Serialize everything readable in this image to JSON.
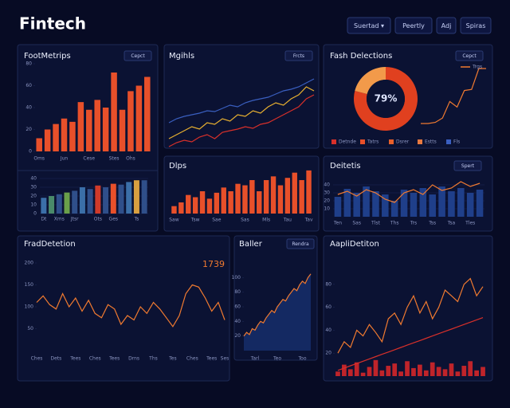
{
  "header": {
    "title": "Fintech",
    "buttons": [
      "Suertad ▾",
      "Peertly",
      "Adj",
      "Spiras"
    ]
  },
  "chart_data": [
    {
      "type": "bar",
      "title": "FootMetrips",
      "button": "Cepct",
      "categories": [
        "Oms",
        null,
        null,
        "Jun",
        null,
        null,
        "Cese",
        null,
        null,
        "Stes",
        null,
        "Ohs",
        null,
        null
      ],
      "values": [
        12,
        20,
        25,
        30,
        27,
        45,
        38,
        47,
        40,
        72,
        38,
        55,
        60,
        68
      ],
      "color": "#e8502a",
      "ylim": [
        0,
        80
      ],
      "yticks": [
        0,
        20,
        40,
        60,
        80
      ]
    },
    {
      "type": "bar",
      "categories": [
        "Dt",
        null,
        "Xms",
        null,
        "Jtsr",
        null,
        null,
        "Ots",
        null,
        "Ges",
        null,
        null,
        "Ts",
        null
      ],
      "values": [
        18,
        20,
        22,
        24,
        26,
        30,
        28,
        32,
        30,
        34,
        33,
        36,
        38,
        38
      ],
      "colors": [
        "#3b6fa8",
        "#4a8a6a",
        "#2f4f8a",
        "#6aa04a",
        "#2f4f8a",
        "#3b6fa8",
        "#2f4f8a",
        "#d03a2a",
        "#2f4f8a",
        "#e8502a",
        "#2f4f8a",
        "#3b6fa8",
        "#d8a040",
        "#2f4f8a"
      ],
      "ylim": [
        0,
        40
      ],
      "yticks": [
        0,
        10,
        20,
        30,
        40
      ],
      "grid": true
    },
    {
      "type": "line",
      "title": "Mgihls",
      "button": "Frcts",
      "series": [
        {
          "color": "#3a5fc0",
          "values": [
            30,
            35,
            38,
            40,
            42,
            45,
            44,
            48,
            52,
            50,
            55,
            58,
            60,
            62,
            66,
            70,
            72,
            75,
            80,
            85
          ]
        },
        {
          "color": "#e8b030",
          "values": [
            10,
            15,
            20,
            25,
            22,
            30,
            28,
            35,
            32,
            40,
            38,
            45,
            42,
            50,
            55,
            52,
            60,
            65,
            75,
            70
          ]
        },
        {
          "color": "#d8302a",
          "values": [
            0,
            5,
            8,
            6,
            12,
            15,
            10,
            18,
            20,
            22,
            25,
            23,
            28,
            30,
            35,
            40,
            45,
            50,
            60,
            65
          ]
        }
      ],
      "ylim": [
        0,
        100
      ]
    },
    {
      "type": "pie",
      "title": "Fash Delections",
      "button": "Cepct",
      "values": [
        79,
        21
      ],
      "value_labels": [
        "79%",
        null
      ],
      "colors": [
        "#e0401f",
        "#f29a4a"
      ],
      "legend": [
        {
          "name": "Detnde",
          "color": "#d8302a"
        },
        {
          "name": "Tatrs",
          "color": "#e8502a"
        },
        {
          "name": "Dsrer",
          "color": "#e8602a"
        },
        {
          "name": "Estts",
          "color": "#e87a40"
        },
        {
          "name": "Fls",
          "color": "#3a5fc0"
        }
      ]
    },
    {
      "type": "line",
      "series": [
        {
          "name": "Trgs",
          "color": "#f07a30",
          "values": [
            0,
            0,
            2,
            10,
            40,
            30,
            60,
            62,
            100,
            100
          ]
        }
      ],
      "ylim": [
        0,
        100
      ]
    },
    {
      "type": "bar",
      "title": "Dlps",
      "categories": [
        "Saw",
        null,
        null,
        "Tsw",
        null,
        null,
        "Sae",
        null,
        null,
        null,
        "Sas",
        null,
        null,
        "Mls",
        null,
        null,
        "Tau",
        null,
        null,
        "Tav"
      ],
      "values": [
        10,
        15,
        25,
        22,
        30,
        20,
        28,
        35,
        30,
        40,
        38,
        45,
        30,
        45,
        50,
        38,
        48,
        55,
        45,
        58
      ],
      "color": "#e8502a",
      "ylim": [
        0,
        60
      ]
    },
    {
      "type": "combo",
      "title": "Deitetis",
      "button": "Spert",
      "categories": [
        "Ten",
        null,
        "Sas",
        null,
        "Tlst",
        null,
        "Ths",
        null,
        "Trs",
        null,
        "Tss",
        null,
        "Tsa",
        null,
        "Tles",
        null
      ],
      "series": [
        {
          "type": "bar",
          "color": "#1f3f8a",
          "values": [
            25,
            35,
            30,
            38,
            32,
            28,
            20,
            34,
            30,
            36,
            28,
            38,
            32,
            36,
            30,
            34
          ]
        },
        {
          "type": "line",
          "color": "#f07a30",
          "values": [
            28,
            32,
            26,
            34,
            30,
            22,
            18,
            30,
            34,
            28,
            40,
            33,
            36,
            44,
            38,
            42
          ]
        }
      ],
      "ylim": [
        0,
        50
      ],
      "yticks": [
        10,
        20,
        30,
        40
      ],
      "grid": true
    },
    {
      "type": "line",
      "title": "FradDetetion",
      "annotation": "1739",
      "categories": [
        "Ches",
        null,
        null,
        "Dets",
        null,
        null,
        "Tees",
        null,
        null,
        "Ches",
        null,
        null,
        "Tees",
        null,
        null,
        "Drns",
        null,
        null,
        "Ths",
        null,
        null,
        "Tes",
        null,
        null,
        "Ches",
        null,
        null,
        "Tees",
        null,
        "Ses"
      ],
      "series": [
        {
          "color": "#f07a30",
          "values": [
            110,
            125,
            105,
            95,
            130,
            100,
            120,
            90,
            115,
            85,
            75,
            105,
            95,
            60,
            80,
            70,
            100,
            85,
            110,
            95,
            75,
            55,
            80,
            130,
            150,
            145,
            120,
            90,
            110,
            70
          ]
        }
      ],
      "ylim": [
        0,
        200
      ],
      "yticks": [
        50,
        100,
        150,
        200
      ]
    },
    {
      "type": "area",
      "title": "Baller",
      "button": "Rendra",
      "fill_color": "#17306e",
      "categories": [
        null,
        null,
        null,
        null,
        "Tarl",
        null,
        null,
        null,
        null,
        null,
        null,
        null,
        "Teo",
        null,
        null,
        null,
        null,
        null,
        null,
        null,
        null,
        "Too",
        null,
        null,
        null
      ],
      "series": [
        {
          "color": "#f07a30",
          "values": [
            20,
            25,
            22,
            30,
            28,
            35,
            40,
            38,
            45,
            50,
            55,
            52,
            60,
            65,
            70,
            68,
            75,
            80,
            85,
            82,
            90,
            95,
            92,
            100,
            105
          ]
        }
      ],
      "ylim": [
        0,
        120
      ],
      "yticks": [
        20,
        40,
        60,
        80,
        100
      ]
    },
    {
      "type": "combo",
      "title": "AapliDetiton",
      "series": [
        {
          "type": "bar",
          "color": "#c0242a",
          "values": [
            4,
            10,
            6,
            12,
            3,
            8,
            14,
            5,
            9,
            11,
            4,
            13,
            7,
            10,
            5,
            12,
            8,
            6,
            11,
            4,
            9,
            13,
            5,
            8
          ]
        },
        {
          "type": "line",
          "color": "#f07a30",
          "values": [
            20,
            30,
            25,
            40,
            35,
            45,
            38,
            30,
            50,
            55,
            45,
            60,
            70,
            55,
            65,
            50,
            60,
            75,
            70,
            65,
            80,
            85,
            70,
            78
          ]
        },
        {
          "type": "line",
          "color": "#d8302a",
          "values": [
            5,
            7,
            9,
            11,
            13,
            15,
            17,
            19,
            21,
            23,
            25,
            27,
            29,
            31,
            33,
            35,
            37,
            39,
            41,
            43,
            45,
            47,
            49,
            51
          ]
        }
      ],
      "ylim": [
        0,
        100
      ],
      "yticks": [
        20,
        40,
        60,
        80
      ]
    }
  ]
}
